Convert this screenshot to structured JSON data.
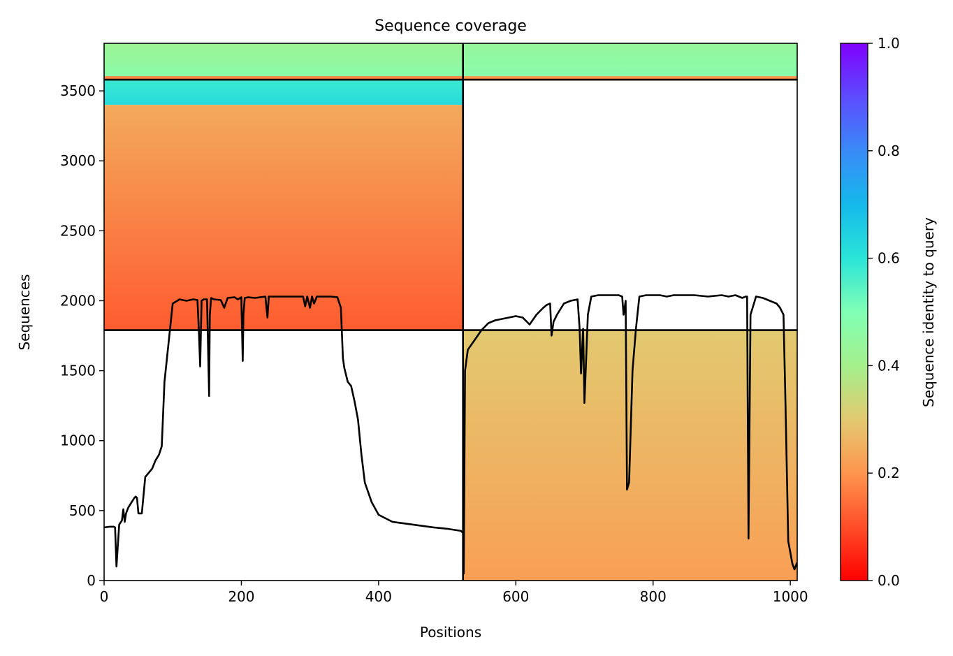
{
  "chart_data": {
    "type": "heatmap",
    "title": "Sequence coverage",
    "xlabel": "Positions",
    "ylabel": "Sequences",
    "xlim": [
      0,
      1010
    ],
    "ylim": [
      0,
      3840
    ],
    "xticks": [
      0,
      200,
      400,
      600,
      800,
      1000
    ],
    "yticks": [
      0,
      500,
      1000,
      1500,
      2000,
      2500,
      3000,
      3500
    ],
    "colorbar": {
      "label": "Sequence identity to query",
      "range": [
        0,
        1
      ],
      "ticks": [
        "0.0",
        "0.2",
        "0.4",
        "0.6",
        "0.8",
        "1.0"
      ],
      "colormap": "rainbow_r",
      "stops": [
        {
          "v": 0.0,
          "color": "#ff0000"
        },
        {
          "v": 0.1,
          "color": "#ff4e28"
        },
        {
          "v": 0.2,
          "color": "#ff954e"
        },
        {
          "v": 0.3,
          "color": "#e2c970"
        },
        {
          "v": 0.4,
          "color": "#a4f08c"
        },
        {
          "v": 0.5,
          "color": "#80ffb4"
        },
        {
          "v": 0.6,
          "color": "#2ae4d8"
        },
        {
          "v": 0.7,
          "color": "#14b9ea"
        },
        {
          "v": 0.8,
          "color": "#3a8af8"
        },
        {
          "v": 0.9,
          "color": "#5c4cfe"
        },
        {
          "v": 1.0,
          "color": "#8000ff"
        }
      ]
    },
    "domain_separators": {
      "vertical_x": 523,
      "horizontal_y": [
        1790,
        3580
      ]
    },
    "coverage_blocks": [
      {
        "x0": 0,
        "x1": 523,
        "y0": 3580,
        "y1": 3840,
        "identity_low": 0.48,
        "identity_high": 0.42,
        "note_strip": 0.18
      },
      {
        "x0": 523,
        "x1": 1010,
        "y0": 3580,
        "y1": 3840,
        "identity_low": 0.48,
        "identity_high": 0.44,
        "note_strip": 0.2
      },
      {
        "x0": 0,
        "x1": 523,
        "y0": 3400,
        "y1": 3580,
        "identity_low": 0.62,
        "identity_high": 0.58
      },
      {
        "x0": 0,
        "x1": 523,
        "y0": 1790,
        "y1": 3400,
        "identity_low": 0.12,
        "identity_high": 0.24
      },
      {
        "x0": 523,
        "x1": 1010,
        "y0": 0,
        "y1": 1790,
        "identity_low": 0.22,
        "identity_high": 0.3
      }
    ],
    "coverage_line": {
      "x": [
        0,
        8,
        14,
        16,
        18,
        22,
        26,
        28,
        30,
        32,
        35,
        40,
        44,
        46,
        48,
        50,
        55,
        60,
        70,
        75,
        80,
        84,
        88,
        100,
        110,
        120,
        130,
        136,
        138,
        140,
        142,
        145,
        150,
        153,
        154,
        156,
        160,
        170,
        175,
        180,
        190,
        195,
        200,
        202,
        203,
        205,
        210,
        220,
        235,
        238,
        240,
        245,
        260,
        280,
        290,
        293,
        296,
        300,
        303,
        306,
        310,
        320,
        330,
        340,
        345,
        348,
        350,
        355,
        360,
        365,
        370,
        375,
        380,
        390,
        400,
        420,
        450,
        480,
        500,
        520,
        522,
        523,
        524,
        526,
        530,
        540,
        550,
        560,
        570,
        580,
        590,
        600,
        610,
        620,
        630,
        640,
        645,
        650,
        652,
        655,
        660,
        670,
        680,
        690,
        693,
        695,
        698,
        700,
        705,
        710,
        720,
        740,
        750,
        755,
        757,
        760,
        762,
        765,
        770,
        775,
        780,
        790,
        800,
        810,
        820,
        830,
        840,
        860,
        880,
        900,
        910,
        920,
        930,
        935,
        937,
        939,
        942,
        950,
        960,
        970,
        980,
        985,
        990,
        993,
        997,
        1000,
        1003,
        1006,
        1010
      ],
      "y": [
        380,
        385,
        385,
        380,
        100,
        400,
        430,
        510,
        420,
        480,
        520,
        560,
        590,
        600,
        590,
        480,
        480,
        740,
        800,
        860,
        900,
        960,
        1420,
        1980,
        2010,
        2000,
        2010,
        2005,
        1800,
        1530,
        2000,
        2010,
        2010,
        1320,
        1900,
        2020,
        2010,
        2005,
        1950,
        2020,
        2025,
        2010,
        2025,
        1570,
        1900,
        2020,
        2025,
        2020,
        2030,
        1880,
        2030,
        2030,
        2030,
        2030,
        2030,
        1960,
        2030,
        1950,
        2030,
        1980,
        2030,
        2030,
        2030,
        2025,
        1950,
        1590,
        1520,
        1420,
        1390,
        1280,
        1150,
        900,
        700,
        560,
        470,
        420,
        400,
        380,
        370,
        355,
        345,
        345,
        50,
        1500,
        1650,
        1720,
        1790,
        1840,
        1860,
        1870,
        1880,
        1890,
        1880,
        1830,
        1900,
        1950,
        1970,
        1980,
        1750,
        1850,
        1900,
        1980,
        2000,
        2010,
        1800,
        1480,
        1800,
        1270,
        1900,
        2030,
        2040,
        2040,
        2040,
        2030,
        1900,
        2000,
        650,
        700,
        1500,
        1800,
        2030,
        2040,
        2040,
        2040,
        2030,
        2040,
        2040,
        2040,
        2030,
        2040,
        2030,
        2040,
        2020,
        2030,
        2030,
        300,
        1900,
        2030,
        2020,
        2000,
        1980,
        1950,
        1900,
        1250,
        280,
        200,
        120,
        80,
        130
      ]
    }
  }
}
